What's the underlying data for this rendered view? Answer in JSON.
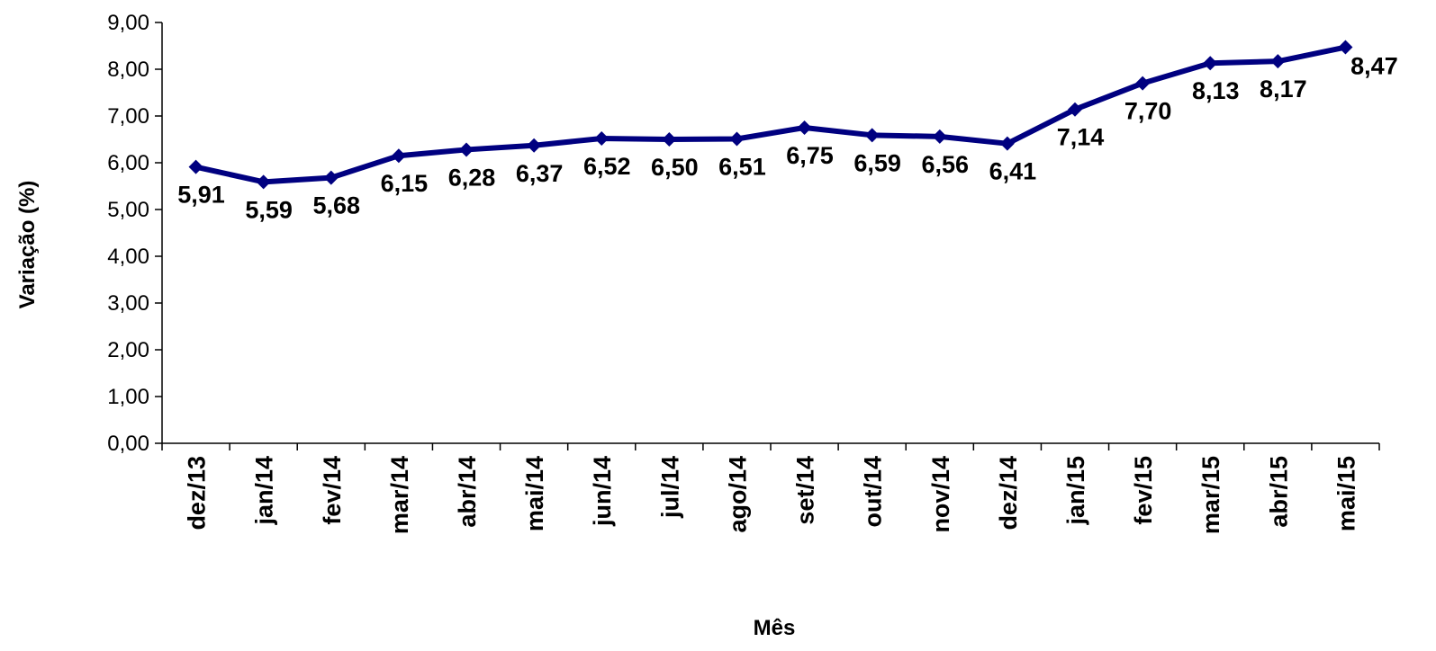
{
  "chart_data": {
    "type": "line",
    "title": "",
    "xlabel": "Mês",
    "ylabel": "Variação (%)",
    "categories": [
      "dez/13",
      "jan/14",
      "fev/14",
      "mar/14",
      "abr/14",
      "mai/14",
      "jun/14",
      "jul/14",
      "ago/14",
      "set/14",
      "out/14",
      "nov/14",
      "dez/14",
      "jan/15",
      "fev/15",
      "mar/15",
      "abr/15",
      "mai/15"
    ],
    "series": [
      {
        "values": [
          5.91,
          5.59,
          5.68,
          6.15,
          6.28,
          6.37,
          6.52,
          6.5,
          6.51,
          6.75,
          6.59,
          6.56,
          6.41,
          7.14,
          7.7,
          8.13,
          8.17,
          8.47
        ],
        "labels": [
          "5,91",
          "5,59",
          "5,68",
          "6,15",
          "6,28",
          "6,37",
          "6,52",
          "6,50",
          "6,51",
          "6,75",
          "6,59",
          "6,56",
          "6,41",
          "7,14",
          "7,70",
          "8,13",
          "8,17",
          "8,47"
        ],
        "color": "#000080"
      }
    ],
    "ylim": [
      0,
      9
    ],
    "yticks": [
      0,
      1,
      2,
      3,
      4,
      5,
      6,
      7,
      8,
      9
    ],
    "ytick_labels": [
      "0,00",
      "1,00",
      "2,00",
      "3,00",
      "4,00",
      "5,00",
      "6,00",
      "7,00",
      "8,00",
      "9,00"
    ],
    "grid": false,
    "legend": "none",
    "marker": "diamond"
  }
}
